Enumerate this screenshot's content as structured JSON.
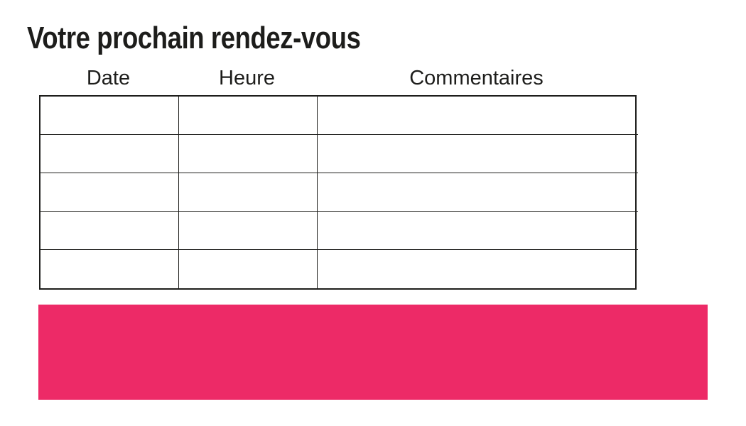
{
  "page": {
    "title": "Votre prochain rendez-vous"
  },
  "appointment_table": {
    "column_headers": [
      {
        "label": "Date"
      },
      {
        "label": "Heure"
      },
      {
        "label": "Commentaires"
      }
    ],
    "rows": [
      {
        "date": "",
        "heure": "",
        "commentaires": ""
      },
      {
        "date": "",
        "heure": "",
        "commentaires": ""
      },
      {
        "date": "",
        "heure": "",
        "commentaires": ""
      },
      {
        "date": "",
        "heure": "",
        "commentaires": ""
      },
      {
        "date": "",
        "heure": "",
        "commentaires": ""
      }
    ]
  },
  "banner": {
    "color": "#ED2A67"
  },
  "colors": {
    "background": "#ffffff",
    "text": "#1d1d1b",
    "table_border": "#1d1d1b",
    "accent": "#ED2A67"
  }
}
